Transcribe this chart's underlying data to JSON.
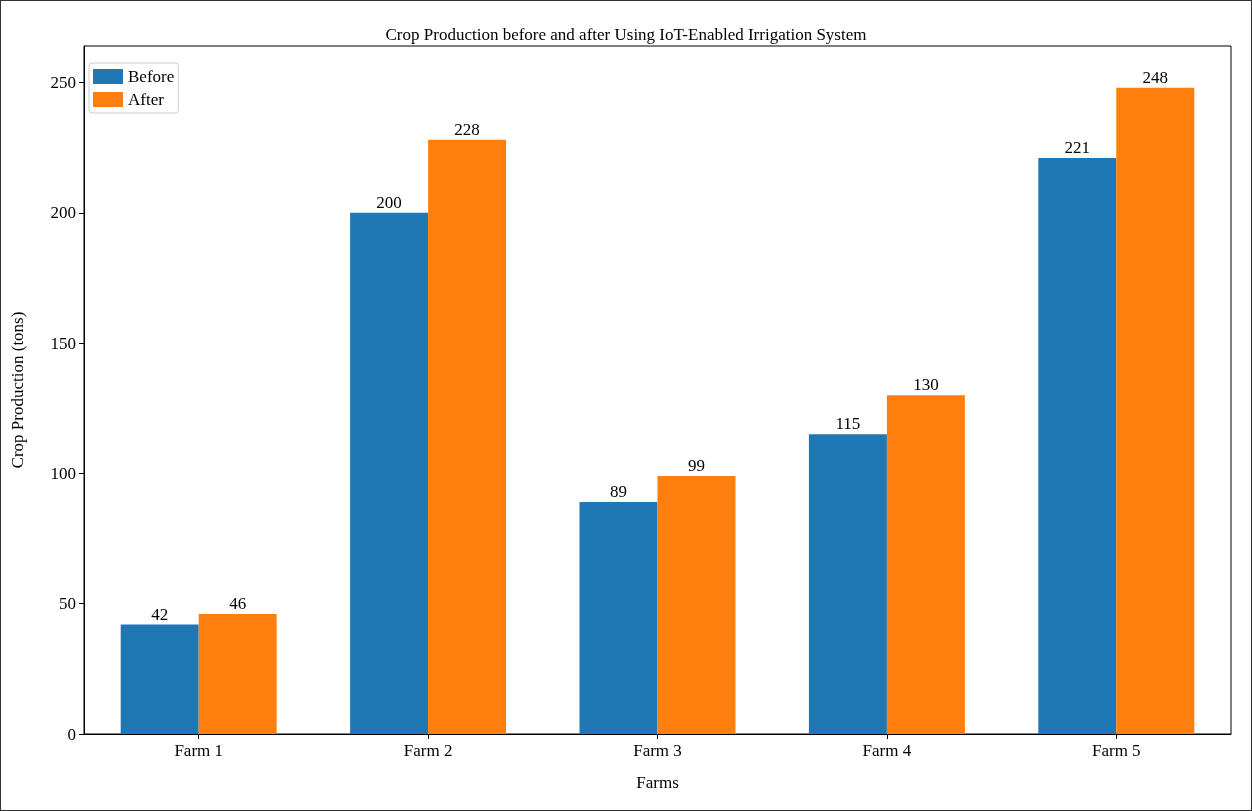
{
  "chart_data": {
    "type": "bar",
    "title": "Crop Production before and after Using IoT-Enabled Irrigation System",
    "xlabel": "Farms",
    "ylabel": "Crop Production (tons)",
    "categories": [
      "Farm 1",
      "Farm 2",
      "Farm 3",
      "Farm 4",
      "Farm 5"
    ],
    "series": [
      {
        "name": "Before",
        "color": "#1f77b4",
        "values": [
          42,
          200,
          89,
          115,
          221
        ]
      },
      {
        "name": "After",
        "color": "#ff7f0e",
        "values": [
          46,
          228,
          99,
          130,
          248
        ]
      }
    ],
    "ylim": [
      0,
      264
    ],
    "yticks": [
      0,
      50,
      100,
      150,
      200,
      250
    ],
    "grid": false,
    "legend": "top left",
    "data_labels": true
  }
}
